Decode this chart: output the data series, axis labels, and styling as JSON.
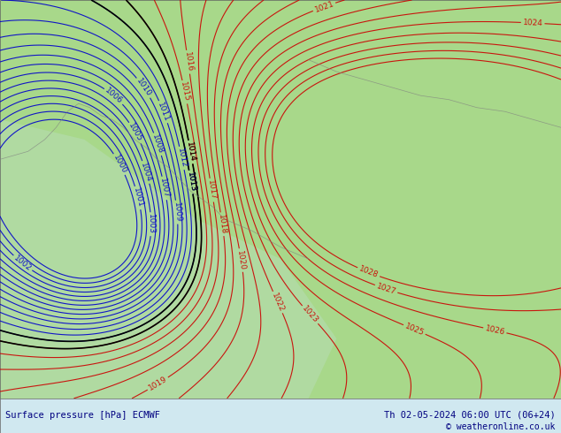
{
  "title_left": "Surface pressure [hPa] ECMWF",
  "title_right": "Th 02-05-2024 06:00 UTC (06+24)",
  "copyright": "© weatheronline.co.uk",
  "fig_width": 6.34,
  "fig_height": 4.9,
  "bg_color_land": "#a8d88a",
  "bg_color_sea": "#c8e8c8",
  "border_color": "#a0a0a0",
  "red_line_color": "#cc0000",
  "blue_line_color": "#0000cc",
  "black_line_color": "#000000",
  "label_color_red": "#cc0000",
  "label_color_blue": "#0000cc",
  "label_color_black": "#000000",
  "bottom_bar_color": "#d0e8f0",
  "bottom_text_color": "#000080",
  "bottom_bar_height": 0.08,
  "font_size_bottom": 7.5,
  "font_size_labels": 6.5
}
